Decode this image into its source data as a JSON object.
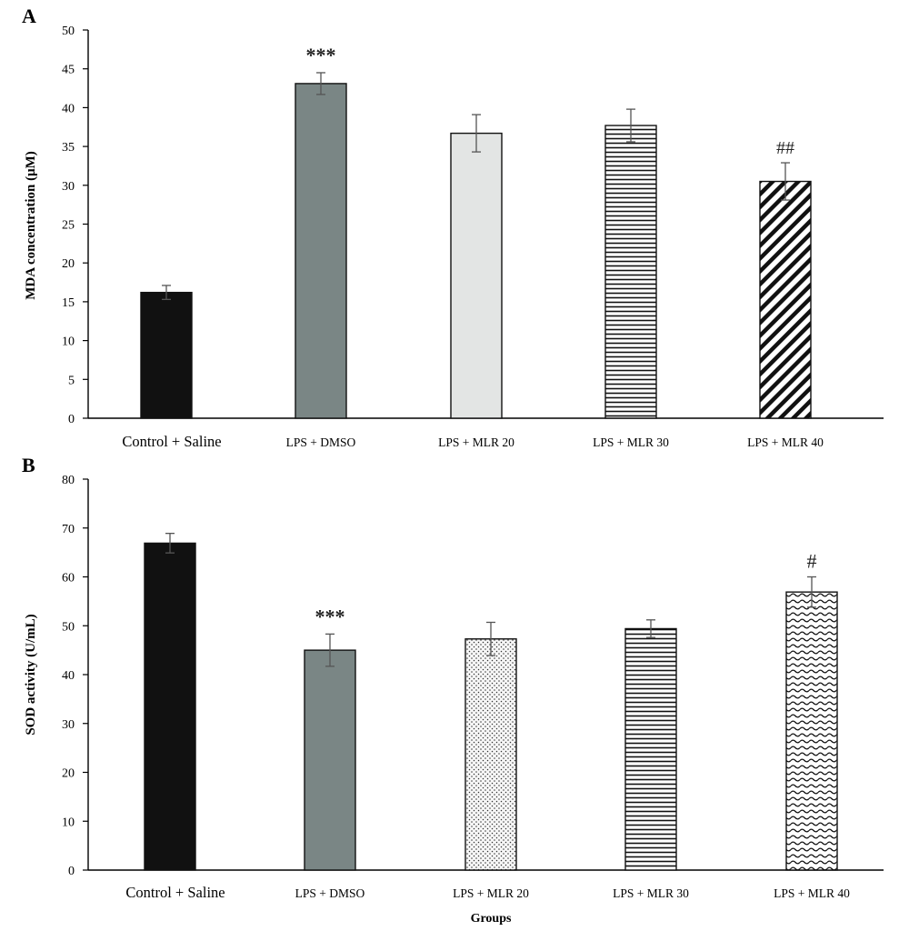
{
  "chart_data": [
    {
      "type": "bar",
      "panel_label": "A",
      "title": "",
      "xlabel": "",
      "ylabel": "MDA concentration (μM)",
      "ylim": [
        0,
        50
      ],
      "yticks": [
        0,
        5,
        10,
        15,
        20,
        25,
        30,
        35,
        40,
        45,
        50
      ],
      "categories": [
        "Control + Saline",
        "LPS + DMSO",
        "LPS + MLR 20",
        "LPS + MLR 30",
        "LPS + MLR 40"
      ],
      "values": [
        16.2,
        43.1,
        36.7,
        37.7,
        30.5
      ],
      "errors": [
        0.9,
        1.4,
        2.4,
        2.1,
        2.4
      ],
      "annotations": [
        "",
        "***",
        "",
        "",
        "##"
      ],
      "fills": [
        "solid-black",
        "solid-gray",
        "solid-lightgray",
        "horizontal-lines",
        "diagonal-lines"
      ],
      "grid": false
    },
    {
      "type": "bar",
      "panel_label": "B",
      "title": "",
      "xlabel": "Groups",
      "ylabel": "SOD activity (U/mL)",
      "ylim": [
        0,
        80
      ],
      "yticks": [
        0,
        10,
        20,
        30,
        40,
        50,
        60,
        70,
        80
      ],
      "categories": [
        "Control + Saline",
        "LPS + DMSO",
        "LPS + MLR 20",
        "LPS + MLR 30",
        "LPS + MLR 40"
      ],
      "values": [
        66.9,
        45.0,
        47.3,
        49.4,
        56.9
      ],
      "errors": [
        2.0,
        3.3,
        3.4,
        1.8,
        3.1
      ],
      "annotations": [
        "",
        "***",
        "",
        "",
        "#"
      ],
      "fills": [
        "solid-black",
        "solid-gray",
        "dots",
        "horizontal-lines",
        "waves"
      ],
      "grid": false
    }
  ],
  "colors": {
    "black_bar": "#111111",
    "gray_bar": "#7a8685",
    "light_bar": "#e3e5e4",
    "error_bar": "#555555",
    "axis": "#000000"
  }
}
